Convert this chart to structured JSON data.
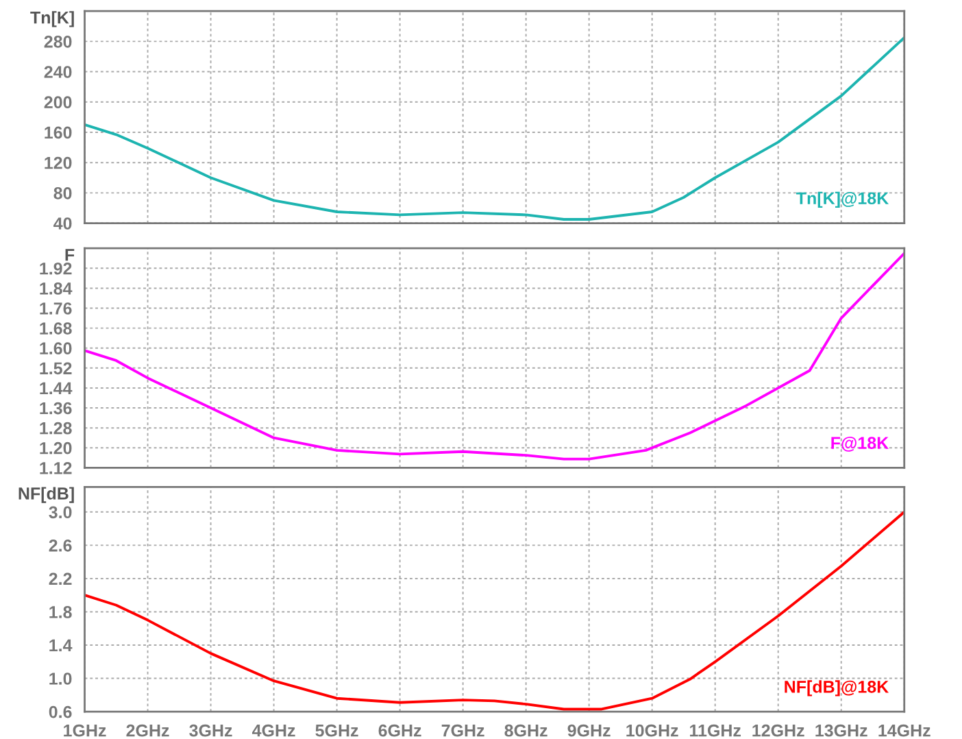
{
  "chart_data": [
    {
      "type": "line",
      "ylabel": "Tn[K]",
      "xlim": [
        1,
        14
      ],
      "xticks": [
        1,
        2,
        3,
        4,
        5,
        6,
        7,
        8,
        9,
        10,
        11,
        12,
        13,
        14
      ],
      "ylim": [
        40,
        320
      ],
      "yticks": [
        40,
        80,
        120,
        160,
        200,
        240,
        280
      ],
      "grid": true,
      "legend": "bottom right",
      "tick_labels": "y",
      "x": [
        1,
        1.5,
        2,
        3,
        4,
        5,
        6,
        7,
        8,
        8.6,
        9,
        10,
        10.5,
        11,
        12,
        13,
        14
      ],
      "series": [
        {
          "name": "Tn[K]@18K",
          "color": "#1db4b0",
          "values": [
            170,
            157,
            139,
            100,
            70,
            55,
            51,
            54,
            51,
            45,
            45,
            55,
            74,
            100,
            147,
            208,
            285
          ]
        }
      ]
    },
    {
      "type": "line",
      "ylabel": "F",
      "xlim": [
        1,
        14
      ],
      "xticks": [
        1,
        2,
        3,
        4,
        5,
        6,
        7,
        8,
        9,
        10,
        11,
        12,
        13,
        14
      ],
      "ylim": [
        1.12,
        2.0
      ],
      "yticks": [
        1.12,
        {
          "value": 1.2,
          "label": "1.20"
        },
        1.28,
        1.36,
        1.44,
        1.52,
        {
          "value": 1.6,
          "label": "1.60"
        },
        1.68,
        1.76,
        1.84,
        1.92
      ],
      "grid": true,
      "legend": "bottom right",
      "tick_labels": "y",
      "x": [
        1,
        1.5,
        2,
        3,
        4,
        5,
        6,
        7,
        8,
        8.6,
        9,
        9.9,
        10.6,
        11.5,
        12.5,
        13,
        14
      ],
      "series": [
        {
          "name": "F@18K",
          "color": "#ff00ff",
          "values": [
            1.59,
            1.55,
            1.48,
            1.36,
            1.24,
            1.19,
            1.175,
            1.185,
            1.17,
            1.155,
            1.155,
            1.19,
            1.26,
            1.37,
            1.51,
            1.72,
            1.98
          ]
        }
      ]
    },
    {
      "type": "line",
      "ylabel": "NF[dB]",
      "xlim": [
        1,
        14
      ],
      "xticks": [
        {
          "value": 1,
          "label": "1GHz"
        },
        {
          "value": 2,
          "label": "2GHz"
        },
        {
          "value": 3,
          "label": "3GHz"
        },
        {
          "value": 4,
          "label": "4GHz"
        },
        {
          "value": 5,
          "label": "5GHz"
        },
        {
          "value": 6,
          "label": "6GHz"
        },
        {
          "value": 7,
          "label": "7GHz"
        },
        {
          "value": 8,
          "label": "8GHz"
        },
        {
          "value": 9,
          "label": "9GHz"
        },
        {
          "value": 10,
          "label": "10GHz"
        },
        {
          "value": 11,
          "label": "11GHz"
        },
        {
          "value": 12,
          "label": "12GHz"
        },
        {
          "value": 13,
          "label": "13GHz"
        },
        {
          "value": 14,
          "label": "14GHz"
        }
      ],
      "ylim": [
        0.6,
        3.3
      ],
      "yticks": [
        0.6,
        {
          "value": 1,
          "label": "1.0"
        },
        1.4,
        1.8,
        2.2,
        2.6,
        {
          "value": 3,
          "label": "3.0"
        }
      ],
      "grid": true,
      "legend": "bottom right",
      "x": [
        1,
        1.5,
        2,
        3,
        4,
        5,
        6,
        7,
        7.5,
        8,
        8.6,
        9.2,
        10,
        10.6,
        11,
        12,
        13,
        14
      ],
      "series": [
        {
          "name": "NF[dB]@18K",
          "color": "#ff0000",
          "values": [
            2.0,
            1.88,
            1.7,
            1.3,
            0.97,
            0.76,
            0.71,
            0.74,
            0.73,
            0.69,
            0.63,
            0.63,
            0.76,
            0.99,
            1.2,
            1.75,
            2.35,
            3.0
          ]
        }
      ]
    }
  ]
}
